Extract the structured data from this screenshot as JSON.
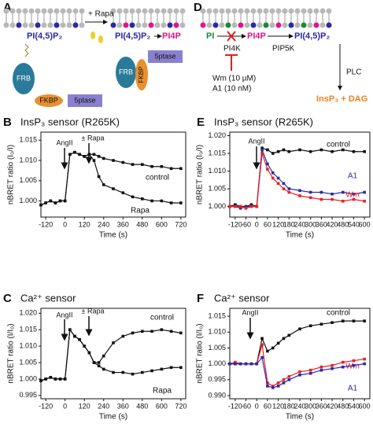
{
  "diagrams": {
    "a": {
      "panel": "A",
      "before": "PI(4,5)P₂",
      "rapa": "+ Rapa",
      "after_from": "PI(4,5)P₂",
      "after_to": "PI4P",
      "frb": "FRB",
      "fkbp": "FKBP",
      "ptase": "5ptase",
      "frb2": "FRB",
      "fkbp2": "FKBP",
      "ptase2": "5ptase"
    },
    "d": {
      "panel": "D",
      "pi": "PI",
      "pi4p": "PI4P",
      "pip2": "PI(4,5)P₂",
      "pi4k": "PI4K",
      "pip5k": "PIP5K",
      "plc": "PLC",
      "wm": "Wm (10 µM)",
      "a1": "A1 (10 nM)",
      "products": "InsP₃ + DAG"
    }
  },
  "chart_data": [
    {
      "panel": "B",
      "type": "line",
      "title": "InsP₃ sensor (R265K)",
      "xlabel": "Time (s)",
      "ylabel": "nBRET ratio (I₀/I)",
      "annotations": [
        "AngII",
        "± Rapa"
      ],
      "x": [
        -150,
        -120,
        -90,
        -60,
        -30,
        0,
        30,
        60,
        90,
        120,
        150,
        180,
        210,
        240,
        300,
        360,
        420,
        480,
        540,
        600,
        660,
        720
      ],
      "xlim": [
        -150,
        750
      ],
      "xticks": [
        -120,
        0,
        120,
        240,
        360,
        480,
        600,
        720
      ],
      "ylim": [
        0.996,
        1.017
      ],
      "yticks": [
        {
          "value": 1,
          "label": "1.000"
        },
        1.005,
        {
          "value": 1.01,
          "label": "1.010"
        },
        1.015
      ],
      "series": [
        {
          "name": "control",
          "color": "#111111",
          "values": [
            0.999,
            0.9995,
            1.0,
            0.9995,
            1.0,
            1.0,
            1.0115,
            1.012,
            1.0115,
            1.011,
            1.0115,
            1.0115,
            1.011,
            1.0105,
            1.01,
            1.0095,
            1.009,
            1.009,
            1.0085,
            1.0085,
            1.008,
            1.008
          ]
        },
        {
          "name": "Rapa",
          "color": "#111111",
          "values": [
            0.999,
            0.9995,
            1.0,
            0.9995,
            1.0,
            1.0,
            1.0115,
            1.012,
            1.0115,
            1.011,
            1.0115,
            1.01,
            1.006,
            1.004,
            1.003,
            1.002,
            1.001,
            1.0005,
            1.0,
            1.0,
            0.9995,
            0.9995
          ]
        }
      ]
    },
    {
      "panel": "C",
      "type": "line",
      "title": "Ca²⁺ sensor",
      "xlabel": "Time (s)",
      "ylabel": "nBRET ratio (I/I₀)",
      "annotations": [
        "AngII",
        "± Rapa"
      ],
      "x": [
        -150,
        -120,
        -90,
        -60,
        -30,
        0,
        30,
        60,
        90,
        120,
        150,
        180,
        210,
        240,
        300,
        360,
        420,
        480,
        540,
        600,
        660,
        720
      ],
      "xlim": [
        -150,
        750
      ],
      "xticks": [
        -120,
        0,
        120,
        240,
        360,
        480,
        600,
        720
      ],
      "ylim": [
        0.994,
        1.0215
      ],
      "yticks": [
        0.995,
        {
          "value": 1,
          "label": "1.000"
        },
        1.005,
        {
          "value": 1.01,
          "label": "1.010"
        },
        1.015,
        {
          "value": 1.02,
          "label": "1.020"
        }
      ],
      "series": [
        {
          "name": "control",
          "color": "#111111",
          "values": [
            0.9995,
            1.0,
            1.0005,
            1.0,
            1.0,
            1.0,
            1.015,
            1.013,
            1.012,
            1.01,
            1.008,
            1.005,
            1.005,
            1.007,
            1.011,
            1.013,
            1.014,
            1.0145,
            1.0145,
            1.015,
            1.0145,
            1.014
          ]
        },
        {
          "name": "Rapa",
          "color": "#111111",
          "values": [
            0.9995,
            1.0,
            1.0005,
            1.0,
            1.0,
            1.0,
            1.015,
            1.013,
            1.012,
            1.01,
            1.008,
            1.005,
            1.004,
            1.003,
            1.002,
            1.002,
            1.0015,
            1.002,
            1.0025,
            1.003,
            1.0035,
            1.0035
          ]
        }
      ]
    },
    {
      "panel": "E",
      "type": "line",
      "title": "InsP₃ sensor (R265K)",
      "xlabel": "Time (s)",
      "ylabel": "nBRET ratio (I₀/I)",
      "annotations": [
        "AngII"
      ],
      "x": [
        -150,
        -120,
        -90,
        -60,
        -30,
        0,
        30,
        60,
        90,
        120,
        150,
        180,
        240,
        300,
        360,
        420,
        480,
        540,
        600
      ],
      "xlim": [
        -150,
        630
      ],
      "xticks": [
        -120,
        -60,
        0,
        60,
        120,
        180,
        240,
        300,
        360,
        420,
        480,
        540,
        600
      ],
      "ylim": [
        0.997,
        1.021
      ],
      "yticks": [
        {
          "value": 1,
          "label": "1.000"
        },
        1.005,
        {
          "value": 1.01,
          "label": "1.010"
        },
        1.015,
        {
          "value": 1.02,
          "label": "1.020"
        }
      ],
      "series": [
        {
          "name": "control",
          "color": "#111111",
          "values": [
            1.0,
            1.0005,
            1.0,
            1.0,
            1.0005,
            1.0,
            1.0165,
            1.016,
            1.015,
            1.0155,
            1.016,
            1.0155,
            1.016,
            1.0155,
            1.016,
            1.0155,
            1.016,
            1.0155,
            1.0155
          ]
        },
        {
          "name": "A1",
          "color": "#2a2aa8",
          "values": [
            1.0,
            1.0,
            0.9995,
            1.0,
            1.0,
            1.0,
            1.016,
            1.012,
            1.0095,
            1.008,
            1.0065,
            1.005,
            1.0045,
            1.004,
            1.004,
            1.0035,
            1.004,
            1.0035,
            1.004
          ]
        },
        {
          "name": "Wm",
          "color": "#e8202a",
          "values": [
            1.0,
            1.0,
            1.0,
            0.9995,
            1.0,
            1.0,
            1.015,
            1.0105,
            1.008,
            1.0065,
            1.005,
            1.004,
            1.003,
            1.0025,
            1.002,
            1.002,
            1.0015,
            1.002,
            1.0015
          ]
        }
      ]
    },
    {
      "panel": "F",
      "type": "line",
      "title": "Ca²⁺ sensor",
      "xlabel": "Time (s)",
      "ylabel": "nBRET ratio (I/I₀)",
      "annotations": [
        "AngII"
      ],
      "x": [
        -150,
        -120,
        -90,
        -60,
        -30,
        0,
        30,
        60,
        90,
        120,
        150,
        180,
        240,
        300,
        360,
        420,
        480,
        540,
        600
      ],
      "xlim": [
        -150,
        630
      ],
      "xticks": [
        -120,
        -60,
        0,
        60,
        120,
        180,
        240,
        300,
        360,
        420,
        480,
        540,
        600
      ],
      "ylim": [
        0.989,
        1.0175
      ],
      "yticks": [
        {
          "value": 0.99,
          "label": "0.990"
        },
        0.995,
        {
          "value": 1,
          "label": "1.000"
        },
        1.005,
        {
          "value": 1.01,
          "label": "1.010"
        },
        1.015
      ],
      "series": [
        {
          "name": "control",
          "color": "#111111",
          "values": [
            1.0,
            1.0,
            1.0,
            1.0,
            1.0,
            1.0,
            1.008,
            1.004,
            1.005,
            1.0065,
            1.008,
            1.009,
            1.011,
            1.012,
            1.0125,
            1.013,
            1.0135,
            1.0135,
            1.0135
          ]
        },
        {
          "name": "Wm",
          "color": "#e8202a",
          "values": [
            1.0,
            1.0005,
            1.0,
            1.0,
            1.0,
            1.0,
            1.006,
            0.994,
            0.993,
            0.994,
            0.995,
            0.996,
            0.9975,
            0.998,
            0.999,
            0.9995,
            1.0005,
            1.001,
            1.0015
          ]
        },
        {
          "name": "A1",
          "color": "#2a2aa8",
          "values": [
            1.0,
            1.0,
            1.0,
            1.0,
            1.0,
            1.0,
            1.002,
            0.993,
            0.9925,
            0.993,
            0.994,
            0.995,
            0.9965,
            0.997,
            0.998,
            0.9985,
            0.999,
            0.9995,
            1.0
          ]
        }
      ]
    }
  ]
}
